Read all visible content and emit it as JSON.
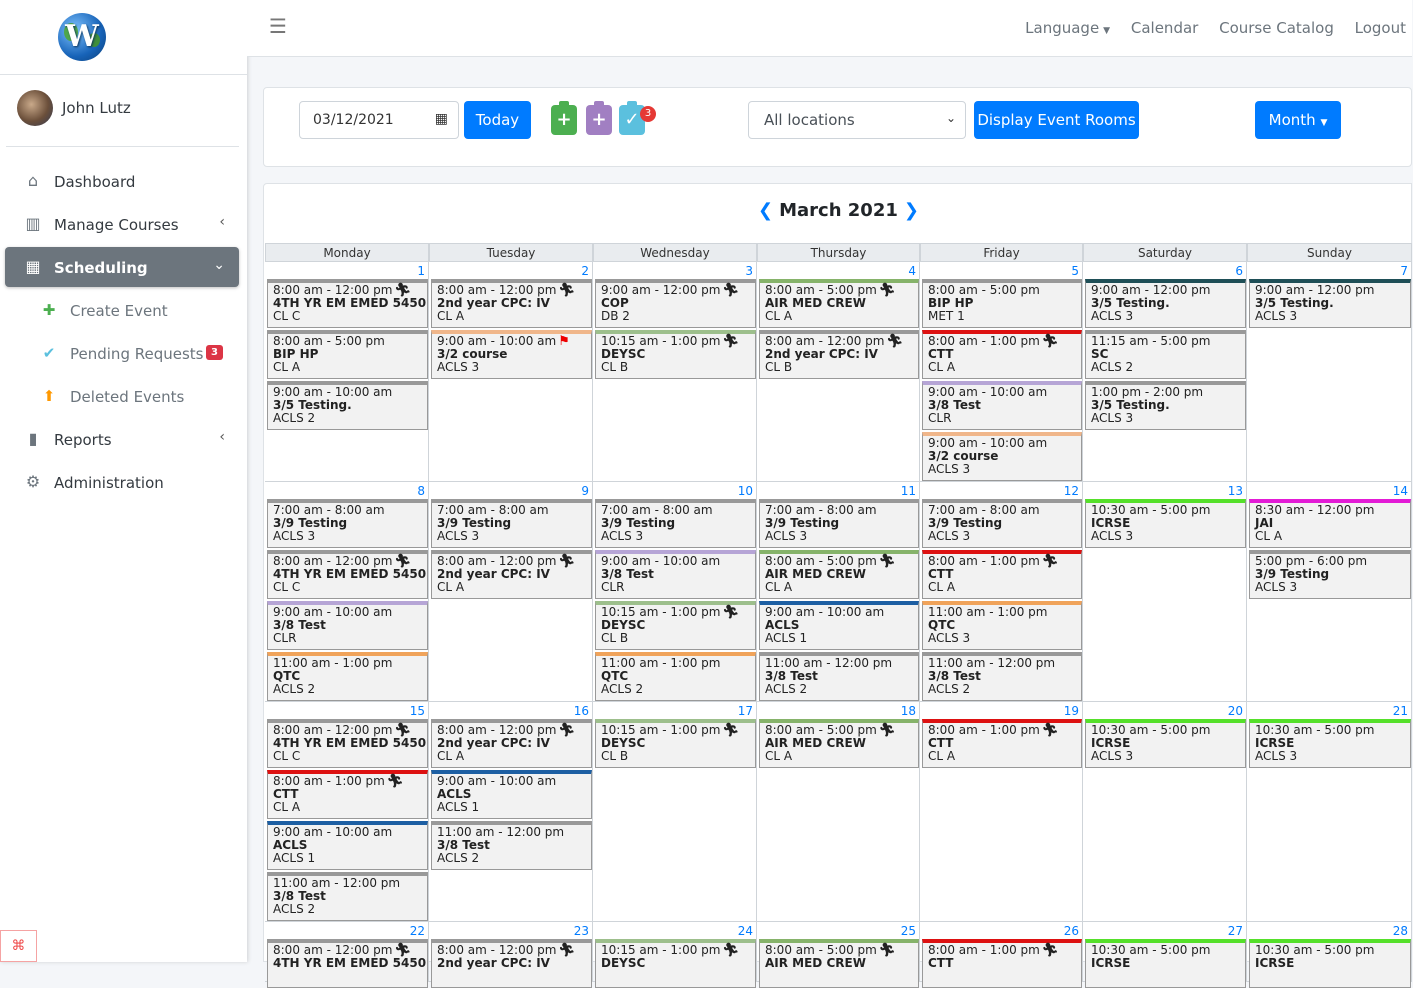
{
  "user": {
    "name": "John Lutz"
  },
  "nav": {
    "items": [
      {
        "label": "Dashboard",
        "icon": "dashboard-icon",
        "glyph": "⌂",
        "chevron": ""
      },
      {
        "label": "Manage Courses",
        "icon": "books-icon",
        "glyph": "▥",
        "chevron": "‹"
      },
      {
        "label": "Scheduling",
        "icon": "calendar-edit-icon",
        "glyph": "▦",
        "chevron": "⌄",
        "active": true
      }
    ],
    "sub_items": [
      {
        "label": "Create Event",
        "icon": "calendar-plus-icon",
        "glyph": "✚",
        "color": "#4caf50"
      },
      {
        "label": "Pending Requests",
        "icon": "calendar-check-icon",
        "glyph": "✔",
        "color": "#5bc0de",
        "badge": "3"
      },
      {
        "label": "Deleted Events",
        "icon": "calendar-delete-icon",
        "glyph": "⬆",
        "color": "#ff9800"
      }
    ],
    "bottom_items": [
      {
        "label": "Reports",
        "icon": "reports-icon",
        "glyph": "▮",
        "chevron": "‹"
      },
      {
        "label": "Administration",
        "icon": "users-cog-icon",
        "glyph": "⚙",
        "chevron": ""
      }
    ]
  },
  "topnav": {
    "language": "Language",
    "calendar": "Calendar",
    "course_catalog": "Course Catalog",
    "logout": "Logout"
  },
  "controls": {
    "date_value": "03/12/2021",
    "today_label": "Today",
    "pending_badge": "3",
    "location": "All locations",
    "rooms_label": "Display Event Rooms",
    "view_label": "Month"
  },
  "calendar": {
    "title": "March 2021",
    "weekdays": [
      "Monday",
      "Tuesday",
      "Wednesday",
      "Thursday",
      "Friday",
      "Saturday",
      "Sunday"
    ],
    "weeks": [
      {
        "days": [
          {
            "num": "1",
            "events": [
              {
                "time": "8:00 am - 12:00 pm",
                "name": "4TH YR EM EMED 5450",
                "room": "CL C",
                "color": "#999999",
                "mark": "run"
              },
              {
                "time": "8:00 am - 5:00 pm",
                "name": "BIP HP",
                "room": "CL A",
                "color": "#999999"
              },
              {
                "time": "9:00 am - 10:00 am",
                "name": "3/5 Testing.",
                "room": "ACLS 2",
                "color": "#999999"
              }
            ]
          },
          {
            "num": "2",
            "events": [
              {
                "time": "8:00 am - 12:00 pm",
                "name": "2nd year CPC: IV",
                "room": "CL A",
                "color": "#999999",
                "mark": "run"
              },
              {
                "time": "9:00 am - 10:00 am",
                "name": "3/2 course",
                "room": "ACLS 3",
                "color": "#f0b68a",
                "mark": "flag"
              }
            ]
          },
          {
            "num": "3",
            "events": [
              {
                "time": "9:00 am - 12:00 pm",
                "name": "COP",
                "room": "DB 2",
                "color": "#999999",
                "mark": "run"
              },
              {
                "time": "10:15 am - 1:00 pm",
                "name": "DEYSC",
                "room": "CL B",
                "color": "#9dbf8c",
                "mark": "run"
              }
            ]
          },
          {
            "num": "4",
            "events": [
              {
                "time": "8:00 am - 5:00 pm",
                "name": "AIR MED CREW",
                "room": "CL A",
                "color": "#86b36a",
                "mark": "run"
              },
              {
                "time": "8:00 am - 12:00 pm",
                "name": "2nd year CPC: IV",
                "room": "CL B",
                "color": "#999999",
                "mark": "run"
              }
            ]
          },
          {
            "num": "5",
            "events": [
              {
                "time": "8:00 am - 5:00 pm",
                "name": "BIP HP",
                "room": "MET 1",
                "color": "#999999"
              },
              {
                "time": "8:00 am - 1:00 pm",
                "name": "CTT",
                "room": "CL A",
                "color": "#dd1111",
                "mark": "run"
              },
              {
                "time": "9:00 am - 10:00 am",
                "name": "3/8 Test",
                "room": "CLR",
                "color": "#b6a5d6"
              },
              {
                "time": "9:00 am - 10:00 am",
                "name": "3/2 course",
                "room": "ACLS 3",
                "color": "#f0b68a"
              }
            ]
          },
          {
            "num": "6",
            "events": [
              {
                "time": "9:00 am - 12:00 pm",
                "name": "3/5 Testing.",
                "room": "ACLS 3",
                "color": "#1f4f57"
              },
              {
                "time": "11:15 am - 5:00 pm",
                "name": "SC",
                "room": "ACLS 2",
                "color": "#999999"
              },
              {
                "time": "1:00 pm - 2:00 pm",
                "name": "3/5 Testing.",
                "room": "ACLS 3",
                "color": "#999999"
              }
            ]
          },
          {
            "num": "7",
            "events": [
              {
                "time": "9:00 am - 12:00 pm",
                "name": "3/5 Testing.",
                "room": "ACLS 3",
                "color": "#1f4f57"
              }
            ]
          }
        ]
      },
      {
        "days": [
          {
            "num": "8",
            "events": [
              {
                "time": "7:00 am - 8:00 am",
                "name": "3/9 Testing",
                "room": "ACLS 3",
                "color": "#999999"
              },
              {
                "time": "8:00 am - 12:00 pm",
                "name": "4TH YR EM EMED 5450",
                "room": "CL C",
                "color": "#999999",
                "mark": "run"
              },
              {
                "time": "9:00 am - 10:00 am",
                "name": "3/8 Test",
                "room": "CLR",
                "color": "#b6a5d6"
              },
              {
                "time": "11:00 am - 1:00 pm",
                "name": "QTC",
                "room": "ACLS 2",
                "color": "#f0a35a"
              }
            ]
          },
          {
            "num": "9",
            "events": [
              {
                "time": "7:00 am - 8:00 am",
                "name": "3/9 Testing",
                "room": "ACLS 3",
                "color": "#999999"
              },
              {
                "time": "8:00 am - 12:00 pm",
                "name": "2nd year CPC: IV",
                "room": "CL A",
                "color": "#999999",
                "mark": "run"
              }
            ]
          },
          {
            "num": "10",
            "events": [
              {
                "time": "7:00 am - 8:00 am",
                "name": "3/9 Testing",
                "room": "ACLS 3",
                "color": "#999999"
              },
              {
                "time": "9:00 am - 10:00 am",
                "name": "3/8 Test",
                "room": "CLR",
                "color": "#b6a5d6"
              },
              {
                "time": "10:15 am - 1:00 pm",
                "name": "DEYSC",
                "room": "CL B",
                "color": "#9dbf8c",
                "mark": "run"
              },
              {
                "time": "11:00 am - 1:00 pm",
                "name": "QTC",
                "room": "ACLS 2",
                "color": "#f0a35a"
              }
            ]
          },
          {
            "num": "11",
            "events": [
              {
                "time": "7:00 am - 8:00 am",
                "name": "3/9 Testing",
                "room": "ACLS 3",
                "color": "#999999"
              },
              {
                "time": "8:00 am - 5:00 pm",
                "name": "AIR MED CREW",
                "room": "CL A",
                "color": "#86b36a",
                "mark": "run"
              },
              {
                "time": "9:00 am - 10:00 am",
                "name": "ACLS",
                "room": "ACLS 1",
                "color": "#1d5fa3"
              },
              {
                "time": "11:00 am - 12:00 pm",
                "name": "3/8 Test",
                "room": "ACLS 2",
                "color": "#999999"
              }
            ]
          },
          {
            "num": "12",
            "events": [
              {
                "time": "7:00 am - 8:00 am",
                "name": "3/9 Testing",
                "room": "ACLS 3",
                "color": "#999999"
              },
              {
                "time": "8:00 am - 1:00 pm",
                "name": "CTT",
                "room": "CL A",
                "color": "#dd1111",
                "mark": "run"
              },
              {
                "time": "11:00 am - 1:00 pm",
                "name": "QTC",
                "room": "ACLS 3",
                "color": "#f0a35a"
              },
              {
                "time": "11:00 am - 12:00 pm",
                "name": "3/8 Test",
                "room": "ACLS 2",
                "color": "#999999"
              }
            ]
          },
          {
            "num": "13",
            "events": [
              {
                "time": "10:30 am - 5:00 pm",
                "name": "ICRSE",
                "room": "ACLS 3",
                "color": "#55e02a"
              }
            ]
          },
          {
            "num": "14",
            "events": [
              {
                "time": "8:30 am - 12:00 pm",
                "name": "JAI",
                "room": "CL A",
                "color": "#e31bd6"
              },
              {
                "time": "5:00 pm - 6:00 pm",
                "name": "3/9 Testing",
                "room": "ACLS 3",
                "color": "#999999"
              }
            ]
          }
        ]
      },
      {
        "days": [
          {
            "num": "15",
            "events": [
              {
                "time": "8:00 am - 12:00 pm",
                "name": "4TH YR EM EMED 5450",
                "room": "CL C",
                "color": "#999999",
                "mark": "run"
              },
              {
                "time": "8:00 am - 1:00 pm",
                "name": "CTT",
                "room": "CL A",
                "color": "#dd1111",
                "mark": "run"
              },
              {
                "time": "9:00 am - 10:00 am",
                "name": "ACLS",
                "room": "ACLS 1",
                "color": "#1d5fa3"
              },
              {
                "time": "11:00 am - 12:00 pm",
                "name": "3/8 Test",
                "room": "ACLS 2",
                "color": "#999999"
              }
            ]
          },
          {
            "num": "16",
            "events": [
              {
                "time": "8:00 am - 12:00 pm",
                "name": "2nd year CPC: IV",
                "room": "CL A",
                "color": "#999999",
                "mark": "run"
              },
              {
                "time": "9:00 am - 10:00 am",
                "name": "ACLS",
                "room": "ACLS 1",
                "color": "#1d5fa3"
              },
              {
                "time": "11:00 am - 12:00 pm",
                "name": "3/8 Test",
                "room": "ACLS 2",
                "color": "#999999"
              }
            ]
          },
          {
            "num": "17",
            "events": [
              {
                "time": "10:15 am - 1:00 pm",
                "name": "DEYSC",
                "room": "CL B",
                "color": "#9dbf8c",
                "mark": "run"
              }
            ]
          },
          {
            "num": "18",
            "events": [
              {
                "time": "8:00 am - 5:00 pm",
                "name": "AIR MED CREW",
                "room": "CL A",
                "color": "#86b36a",
                "mark": "run"
              }
            ]
          },
          {
            "num": "19",
            "events": [
              {
                "time": "8:00 am - 1:00 pm",
                "name": "CTT",
                "room": "CL A",
                "color": "#dd1111",
                "mark": "run"
              }
            ]
          },
          {
            "num": "20",
            "events": [
              {
                "time": "10:30 am - 5:00 pm",
                "name": "ICRSE",
                "room": "ACLS 3",
                "color": "#55e02a"
              }
            ]
          },
          {
            "num": "21",
            "events": [
              {
                "time": "10:30 am - 5:00 pm",
                "name": "ICRSE",
                "room": "ACLS 3",
                "color": "#55e02a"
              }
            ]
          }
        ]
      },
      {
        "days": [
          {
            "num": "22",
            "events": [
              {
                "time": "8:00 am - 12:00 pm",
                "name": "4TH YR EM EMED 5450",
                "room": "",
                "color": "#999999",
                "mark": "run"
              }
            ]
          },
          {
            "num": "23",
            "events": [
              {
                "time": "8:00 am - 12:00 pm",
                "name": "2nd year CPC: IV",
                "room": "",
                "color": "#999999",
                "mark": "run"
              }
            ]
          },
          {
            "num": "24",
            "events": [
              {
                "time": "10:15 am - 1:00 pm",
                "name": "DEYSC",
                "room": "",
                "color": "#9dbf8c",
                "mark": "run"
              }
            ]
          },
          {
            "num": "25",
            "events": [
              {
                "time": "8:00 am - 5:00 pm",
                "name": "AIR MED CREW",
                "room": "",
                "color": "#86b36a",
                "mark": "run"
              }
            ]
          },
          {
            "num": "26",
            "events": [
              {
                "time": "8:00 am - 1:00 pm",
                "name": "CTT",
                "room": "",
                "color": "#dd1111",
                "mark": "run"
              }
            ]
          },
          {
            "num": "27",
            "events": [
              {
                "time": "10:30 am - 5:00 pm",
                "name": "ICRSE",
                "room": "",
                "color": "#55e02a"
              }
            ]
          },
          {
            "num": "28",
            "events": [
              {
                "time": "10:30 am - 5:00 pm",
                "name": "ICRSE",
                "room": "",
                "color": "#55e02a"
              }
            ]
          }
        ]
      }
    ]
  }
}
